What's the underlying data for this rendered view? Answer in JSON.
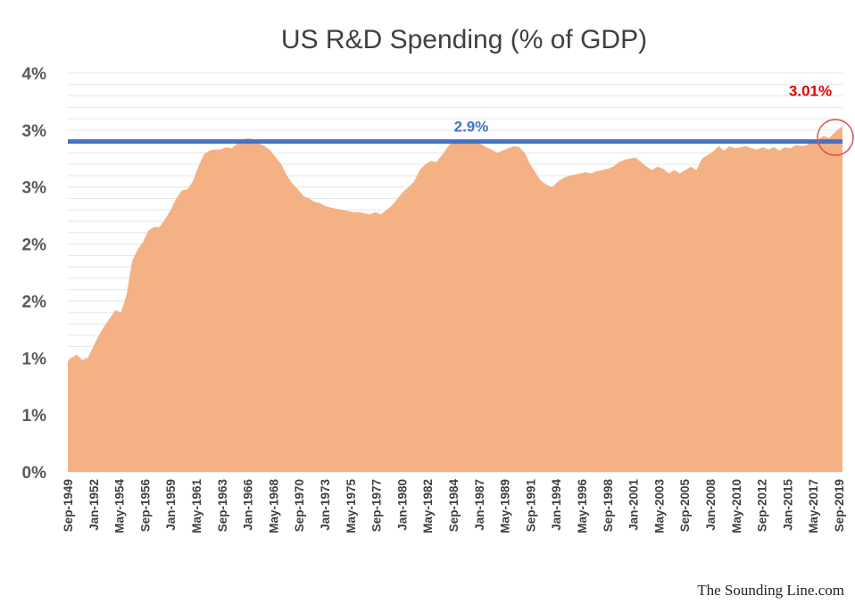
{
  "chart_data": {
    "type": "area",
    "title": "US R&D Spending (% of GDP)",
    "xlabel": "",
    "ylabel": "",
    "y_tick_labels": [
      "0%",
      "1%",
      "1%",
      "2%",
      "2%",
      "3%",
      "3%",
      "4%"
    ],
    "y_tick_values": [
      0,
      0.5,
      1.0,
      1.5,
      2.0,
      2.5,
      3.0,
      3.5
    ],
    "ylim": [
      0,
      3.5
    ],
    "x_tick_labels": [
      "Sep-1949",
      "Jan-1952",
      "May-1954",
      "Sep-1956",
      "Jan-1959",
      "May-1961",
      "Sep-1963",
      "Jan-1966",
      "May-1968",
      "Sep-1970",
      "Jan-1973",
      "May-1975",
      "Sep-1977",
      "Jan-1980",
      "May-1982",
      "Sep-1984",
      "Jan-1987",
      "May-1989",
      "Sep-1991",
      "Jan-1994",
      "May-1996",
      "Sep-1998",
      "Jan-2001",
      "May-2003",
      "Sep-2005",
      "Jan-2008",
      "May-2010",
      "Sep-2012",
      "Jan-2015",
      "May-2017",
      "Sep-2019"
    ],
    "grid": true,
    "series": [
      {
        "name": "",
        "color": "#f4b183",
        "x": [
          1949.7,
          1950.0,
          1950.5,
          1951.0,
          1951.5,
          1952.0,
          1952.5,
          1953.0,
          1953.5,
          1954.0,
          1954.5,
          1955.0,
          1955.5,
          1956.0,
          1956.5,
          1957.0,
          1957.5,
          1958.0,
          1958.5,
          1959.0,
          1959.5,
          1960.0,
          1960.5,
          1961.0,
          1961.5,
          1962.0,
          1962.5,
          1963.0,
          1963.5,
          1964.0,
          1964.5,
          1965.0,
          1965.5,
          1966.0,
          1966.5,
          1967.0,
          1967.5,
          1968.0,
          1968.5,
          1969.0,
          1969.5,
          1970.0,
          1970.5,
          1971.0,
          1971.5,
          1972.0,
          1972.5,
          1973.0,
          1973.5,
          1974.0,
          1974.5,
          1975.0,
          1975.5,
          1976.0,
          1976.5,
          1977.0,
          1977.5,
          1978.0,
          1978.5,
          1979.0,
          1979.5,
          1980.0,
          1980.5,
          1981.0,
          1981.5,
          1982.0,
          1982.5,
          1983.0,
          1983.5,
          1984.0,
          1984.5,
          1985.0,
          1985.5,
          1986.0,
          1986.5,
          1987.0,
          1987.5,
          1988.0,
          1988.5,
          1989.0,
          1989.5,
          1990.0,
          1990.5,
          1991.0,
          1991.5,
          1992.0,
          1992.5,
          1993.0,
          1993.5,
          1994.0,
          1994.5,
          1995.0,
          1995.5,
          1996.0,
          1996.5,
          1997.0,
          1997.5,
          1998.0,
          1998.5,
          1999.0,
          1999.5,
          2000.0,
          2000.5,
          2001.0,
          2001.5,
          2002.0,
          2002.5,
          2003.0,
          2003.5,
          2004.0,
          2004.5,
          2005.0,
          2005.5,
          2006.0,
          2006.5,
          2007.0,
          2007.5,
          2008.0,
          2008.5,
          2009.0,
          2009.5,
          2010.0,
          2010.5,
          2011.0,
          2011.5,
          2012.0,
          2012.5,
          2013.0,
          2013.5,
          2014.0,
          2014.5,
          2015.0,
          2015.5,
          2016.0,
          2016.5,
          2017.0,
          2017.5,
          2018.0,
          2018.5,
          2019.0,
          2019.5,
          2019.7
        ],
        "values": [
          0.97,
          1.0,
          1.03,
          0.98,
          1.0,
          1.1,
          1.2,
          1.28,
          1.35,
          1.42,
          1.4,
          1.55,
          1.85,
          1.95,
          2.02,
          2.12,
          2.15,
          2.15,
          2.22,
          2.3,
          2.4,
          2.47,
          2.48,
          2.55,
          2.68,
          2.79,
          2.82,
          2.83,
          2.83,
          2.85,
          2.84,
          2.88,
          2.92,
          2.93,
          2.92,
          2.88,
          2.86,
          2.82,
          2.76,
          2.7,
          2.6,
          2.53,
          2.48,
          2.42,
          2.4,
          2.37,
          2.36,
          2.33,
          2.32,
          2.31,
          2.3,
          2.29,
          2.28,
          2.28,
          2.27,
          2.26,
          2.28,
          2.26,
          2.3,
          2.34,
          2.4,
          2.46,
          2.5,
          2.55,
          2.65,
          2.7,
          2.73,
          2.72,
          2.78,
          2.85,
          2.9,
          2.91,
          2.89,
          2.9,
          2.89,
          2.88,
          2.85,
          2.83,
          2.8,
          2.82,
          2.84,
          2.86,
          2.85,
          2.8,
          2.7,
          2.62,
          2.55,
          2.52,
          2.5,
          2.55,
          2.58,
          2.6,
          2.61,
          2.62,
          2.63,
          2.62,
          2.64,
          2.65,
          2.66,
          2.68,
          2.72,
          2.74,
          2.75,
          2.76,
          2.72,
          2.68,
          2.65,
          2.68,
          2.66,
          2.62,
          2.65,
          2.62,
          2.65,
          2.68,
          2.65,
          2.75,
          2.78,
          2.81,
          2.86,
          2.82,
          2.86,
          2.84,
          2.85,
          2.86,
          2.84,
          2.83,
          2.85,
          2.83,
          2.85,
          2.82,
          2.85,
          2.84,
          2.87,
          2.86,
          2.87,
          2.9,
          2.92,
          2.95,
          2.93,
          2.98,
          3.02,
          3.03
        ]
      }
    ],
    "reference_line": {
      "value": 2.9,
      "label": "2.9%",
      "color": "#4472c4"
    },
    "annotation": {
      "label": "3.01%",
      "color": "#e00000",
      "circle_color": "#e05050"
    }
  },
  "footer": {
    "source": "The Sounding Line.com"
  }
}
